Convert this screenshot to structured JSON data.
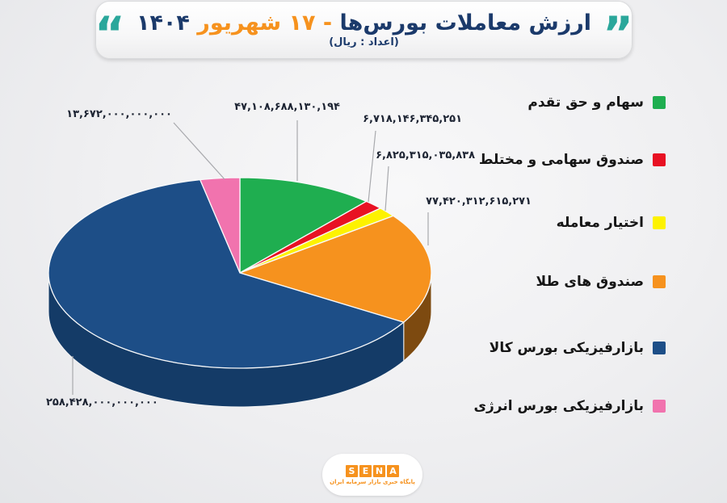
{
  "header": {
    "title_part1": "ارزش معاملات بورس‌ها",
    "title_part2": " - ۱۷ شهریور ",
    "title_part3": "۱۴۰۴",
    "subtitle": "(اعداد : ریال)",
    "quote_open": "“",
    "quote_close": "”"
  },
  "colors": {
    "title_navy": "#1b3a6b",
    "accent_orange": "#f6921e",
    "quote_teal": "#2aa79b",
    "label_dark": "#1d2433",
    "legend_text": "#161616",
    "leader_gray": "#a8a9ad"
  },
  "chart_data": {
    "type": "pie",
    "style": "3d-pie",
    "title": "ارزش معاملات بورس‌ها - ۱۷ شهریور ۱۴۰۴",
    "unit_note": "اعداد : ریال",
    "legend_position": "right",
    "start_angle_deg": 0,
    "direction": "clockwise",
    "points": [
      {
        "label": "سهام و حق تقدم",
        "value": 47108688130194,
        "display": "۴۷,۱۰۸,۶۸۸,۱۳۰,۱۹۴",
        "color": "#1fae50",
        "side_color": "#0f6b30"
      },
      {
        "label": "صندوق سهامی و مختلط",
        "value": 6718146345251,
        "display": "۶,۷۱۸,۱۴۶,۳۴۵,۲۵۱",
        "color": "#e81123",
        "side_color": "#8f0a15"
      },
      {
        "label": "اختیار معامله",
        "value": 6825315035838,
        "display": "۶,۸۲۵,۳۱۵,۰۳۵,۸۳۸",
        "color": "#fdf200",
        "side_color": "#a39b00"
      },
      {
        "label": "صندوق های طلا",
        "value": 77420312615271,
        "display": "۷۷,۴۲۰,۳۱۲,۶۱۵,۲۷۱",
        "color": "#f6921e",
        "side_color": "#7d4a10"
      },
      {
        "label": "بازارفیزیکی بورس کالا",
        "value": 258428000000000,
        "display": "۲۵۸,۴۲۸,۰۰۰,۰۰۰,۰۰۰",
        "color": "#1d4e87",
        "side_color": "#143b67"
      },
      {
        "label": "بازارفیزیکی بورس انرژی",
        "value": 13672000000000,
        "display": "۱۳,۶۷۲,۰۰۰,۰۰۰,۰۰۰",
        "color": "#f173ae",
        "side_color": "#b04a7d"
      }
    ]
  },
  "footer": {
    "logo_letters": [
      "S",
      "E",
      "N",
      "A"
    ],
    "tagline": "پایگاه خبری بازار سرمایه ایران"
  }
}
